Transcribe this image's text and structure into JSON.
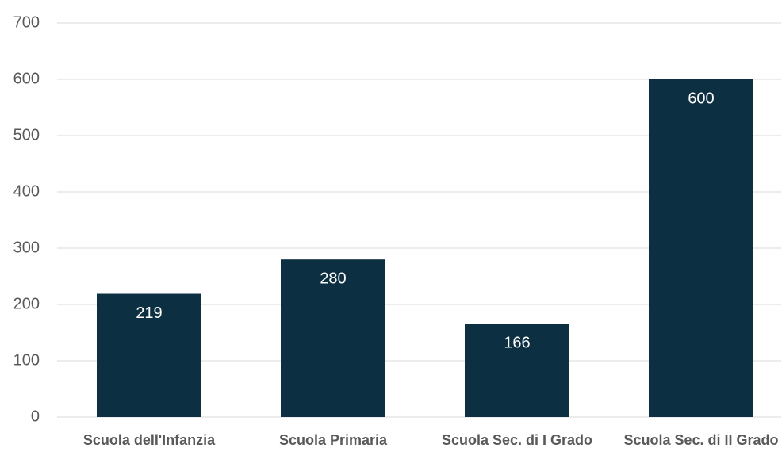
{
  "chart_data": {
    "type": "bar",
    "categories": [
      "Scuola dell'Infanzia",
      "Scuola Primaria",
      "Scuola Sec. di I Grado",
      "Scuola Sec. di II Grado"
    ],
    "values": [
      219,
      280,
      166,
      600
    ],
    "color": "#0d2f42",
    "ylim": [
      0,
      700
    ],
    "yticks": [
      0,
      100,
      200,
      300,
      400,
      500,
      600,
      700
    ],
    "grid": true
  }
}
